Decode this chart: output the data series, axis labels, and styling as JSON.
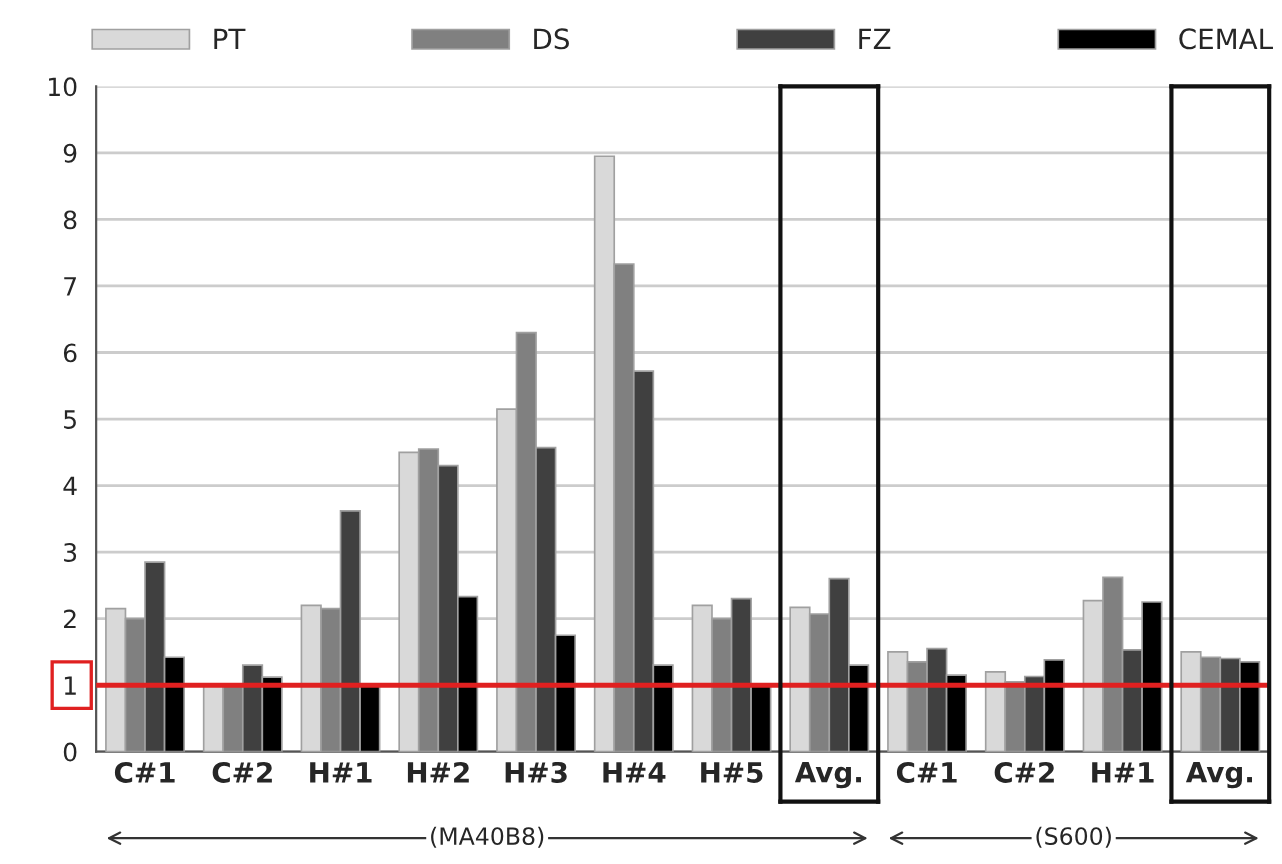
{
  "chart_data": {
    "type": "bar",
    "categories": [
      "C#1",
      "C#2",
      "H#1",
      "H#2",
      "H#3",
      "H#4",
      "H#5",
      "Avg.",
      "C#1",
      "C#2",
      "H#1",
      "Avg."
    ],
    "series": [
      {
        "name": "PT",
        "color": "#d9d9d9",
        "values": [
          2.15,
          1.0,
          2.2,
          4.5,
          5.15,
          8.95,
          2.2,
          2.17,
          1.5,
          1.2,
          2.27,
          1.5
        ]
      },
      {
        "name": "DS",
        "color": "#808080",
        "values": [
          2.0,
          1.0,
          2.15,
          4.55,
          6.3,
          7.33,
          2.0,
          2.07,
          1.35,
          1.05,
          2.62,
          1.42
        ]
      },
      {
        "name": "FZ",
        "color": "#404040",
        "values": [
          2.85,
          1.3,
          3.62,
          4.3,
          4.57,
          5.72,
          2.3,
          2.6,
          1.55,
          1.13,
          1.53,
          1.4
        ]
      },
      {
        "name": "CEMAL",
        "color": "#000000",
        "values": [
          1.42,
          1.12,
          1.0,
          2.33,
          1.75,
          1.3,
          1.0,
          1.3,
          1.15,
          1.38,
          2.25,
          1.35
        ]
      }
    ],
    "ylim": [
      0,
      10
    ],
    "yticks": [
      0,
      1,
      2,
      3,
      4,
      5,
      6,
      7,
      8,
      9,
      10
    ],
    "ref_lines": [
      {
        "axis": "y",
        "value": 1,
        "color": "#e02020"
      }
    ],
    "annotations": [
      "(MA40B8)",
      "(S600)"
    ],
    "grid": "y",
    "legend": "top"
  }
}
